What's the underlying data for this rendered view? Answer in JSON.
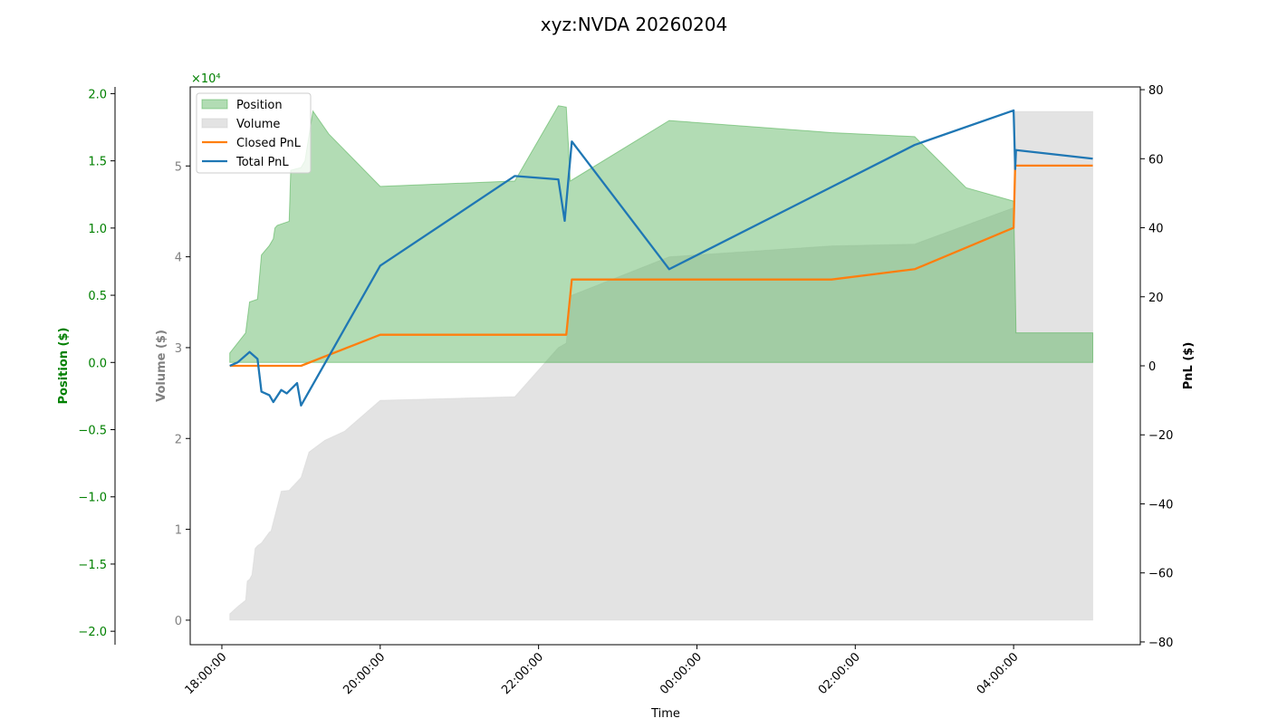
{
  "chart_data": {
    "type": "area",
    "title": "xyz:NVDA 20260204",
    "xlabel": "Time",
    "x_ticks": [
      "18:00:00",
      "20:00:00",
      "22:00:00",
      "00:00:00",
      "02:00:00",
      "04:00:00"
    ],
    "x_range_hours": [
      17.6,
      29.6
    ],
    "axes": {
      "position": {
        "label": "Position ($)",
        "color": "#008000",
        "ylim": [
          -2.1,
          2.05
        ],
        "ticks": [
          "−2.0",
          "−1.5",
          "−1.0",
          "−0.5",
          "0.0",
          "0.5",
          "1.0",
          "1.5",
          "2.0"
        ],
        "multiplier": "×10⁴"
      },
      "volume": {
        "label": "Volume ($)",
        "color": "#808080",
        "ylim": [
          -0.27,
          5.87
        ],
        "ticks": [
          "0",
          "1",
          "2",
          "3",
          "4",
          "5"
        ]
      },
      "pnl": {
        "label": "PnL ($)",
        "color": "#000000",
        "ylim": [
          -80.8,
          80.8
        ],
        "ticks": [
          "−80",
          "−60",
          "−40",
          "−20",
          "0",
          "20",
          "40",
          "60",
          "80"
        ]
      }
    },
    "legend": {
      "placement": "top-left",
      "entries": [
        "Position",
        "Volume",
        "Closed PnL",
        "Total PnL"
      ]
    },
    "series": [
      {
        "name": "Position",
        "kind": "area",
        "axis": "position",
        "color": "#4caf50",
        "x": [
          18.1,
          18.1,
          18.3,
          18.35,
          18.45,
          18.5,
          18.6,
          18.65,
          18.67,
          18.7,
          18.85,
          18.87,
          19.0,
          19.05,
          19.15,
          19.35,
          20.0,
          21.7,
          22.25,
          22.35,
          22.37,
          22.4,
          23.65,
          25.7,
          26.75,
          27.4,
          28.0,
          28.02,
          28.03,
          29.0
        ],
        "values": [
          0,
          0.07,
          0.22,
          0.45,
          0.47,
          0.8,
          0.87,
          0.92,
          1.0,
          1.02,
          1.05,
          1.43,
          1.45,
          1.5,
          1.87,
          1.7,
          1.31,
          1.35,
          1.91,
          1.9,
          1.69,
          1.35,
          1.8,
          1.71,
          1.68,
          1.3,
          1.2,
          0.6,
          0.22,
          0.22
        ]
      },
      {
        "name": "Volume",
        "kind": "area",
        "axis": "volume",
        "color": "#cccccc",
        "x": [
          18.1,
          18.1,
          18.2,
          18.3,
          18.32,
          18.35,
          18.38,
          18.42,
          18.45,
          18.5,
          18.6,
          18.62,
          18.75,
          18.85,
          18.87,
          19.0,
          19.1,
          19.3,
          19.55,
          20.0,
          21.7,
          22.25,
          22.35,
          22.4,
          23.65,
          25.7,
          26.75,
          28.0,
          28.02,
          29.0
        ],
        "values": [
          0,
          0.07,
          0.15,
          0.22,
          0.43,
          0.45,
          0.5,
          0.79,
          0.82,
          0.85,
          0.97,
          0.98,
          1.42,
          1.43,
          1.45,
          1.57,
          1.85,
          1.98,
          2.08,
          2.42,
          2.46,
          3.0,
          3.05,
          3.57,
          4.0,
          4.12,
          4.14,
          4.54,
          5.6,
          5.6
        ]
      },
      {
        "name": "Closed PnL",
        "kind": "line",
        "axis": "pnl",
        "color": "#ff7f0e",
        "x": [
          18.1,
          19.0,
          20.0,
          22.3,
          22.35,
          22.42,
          25.7,
          26.75,
          28.0,
          28.02,
          29.0
        ],
        "values": [
          0,
          0,
          9,
          9,
          9,
          25,
          25,
          28,
          40,
          58,
          58
        ]
      },
      {
        "name": "Total PnL",
        "kind": "line",
        "axis": "pnl",
        "color": "#1f77b4",
        "x": [
          18.1,
          18.2,
          18.35,
          18.45,
          18.5,
          18.6,
          18.65,
          18.75,
          18.82,
          18.95,
          19.0,
          20.0,
          21.7,
          22.25,
          22.33,
          22.42,
          23.65,
          26.75,
          28.0,
          28.02,
          28.03,
          29.0
        ],
        "values": [
          0,
          1,
          4,
          2,
          -7.5,
          -8.5,
          -10.5,
          -7,
          -8,
          -5,
          -11.5,
          29,
          55,
          54,
          42,
          65,
          28,
          64,
          74,
          57,
          62.5,
          60
        ]
      }
    ]
  }
}
